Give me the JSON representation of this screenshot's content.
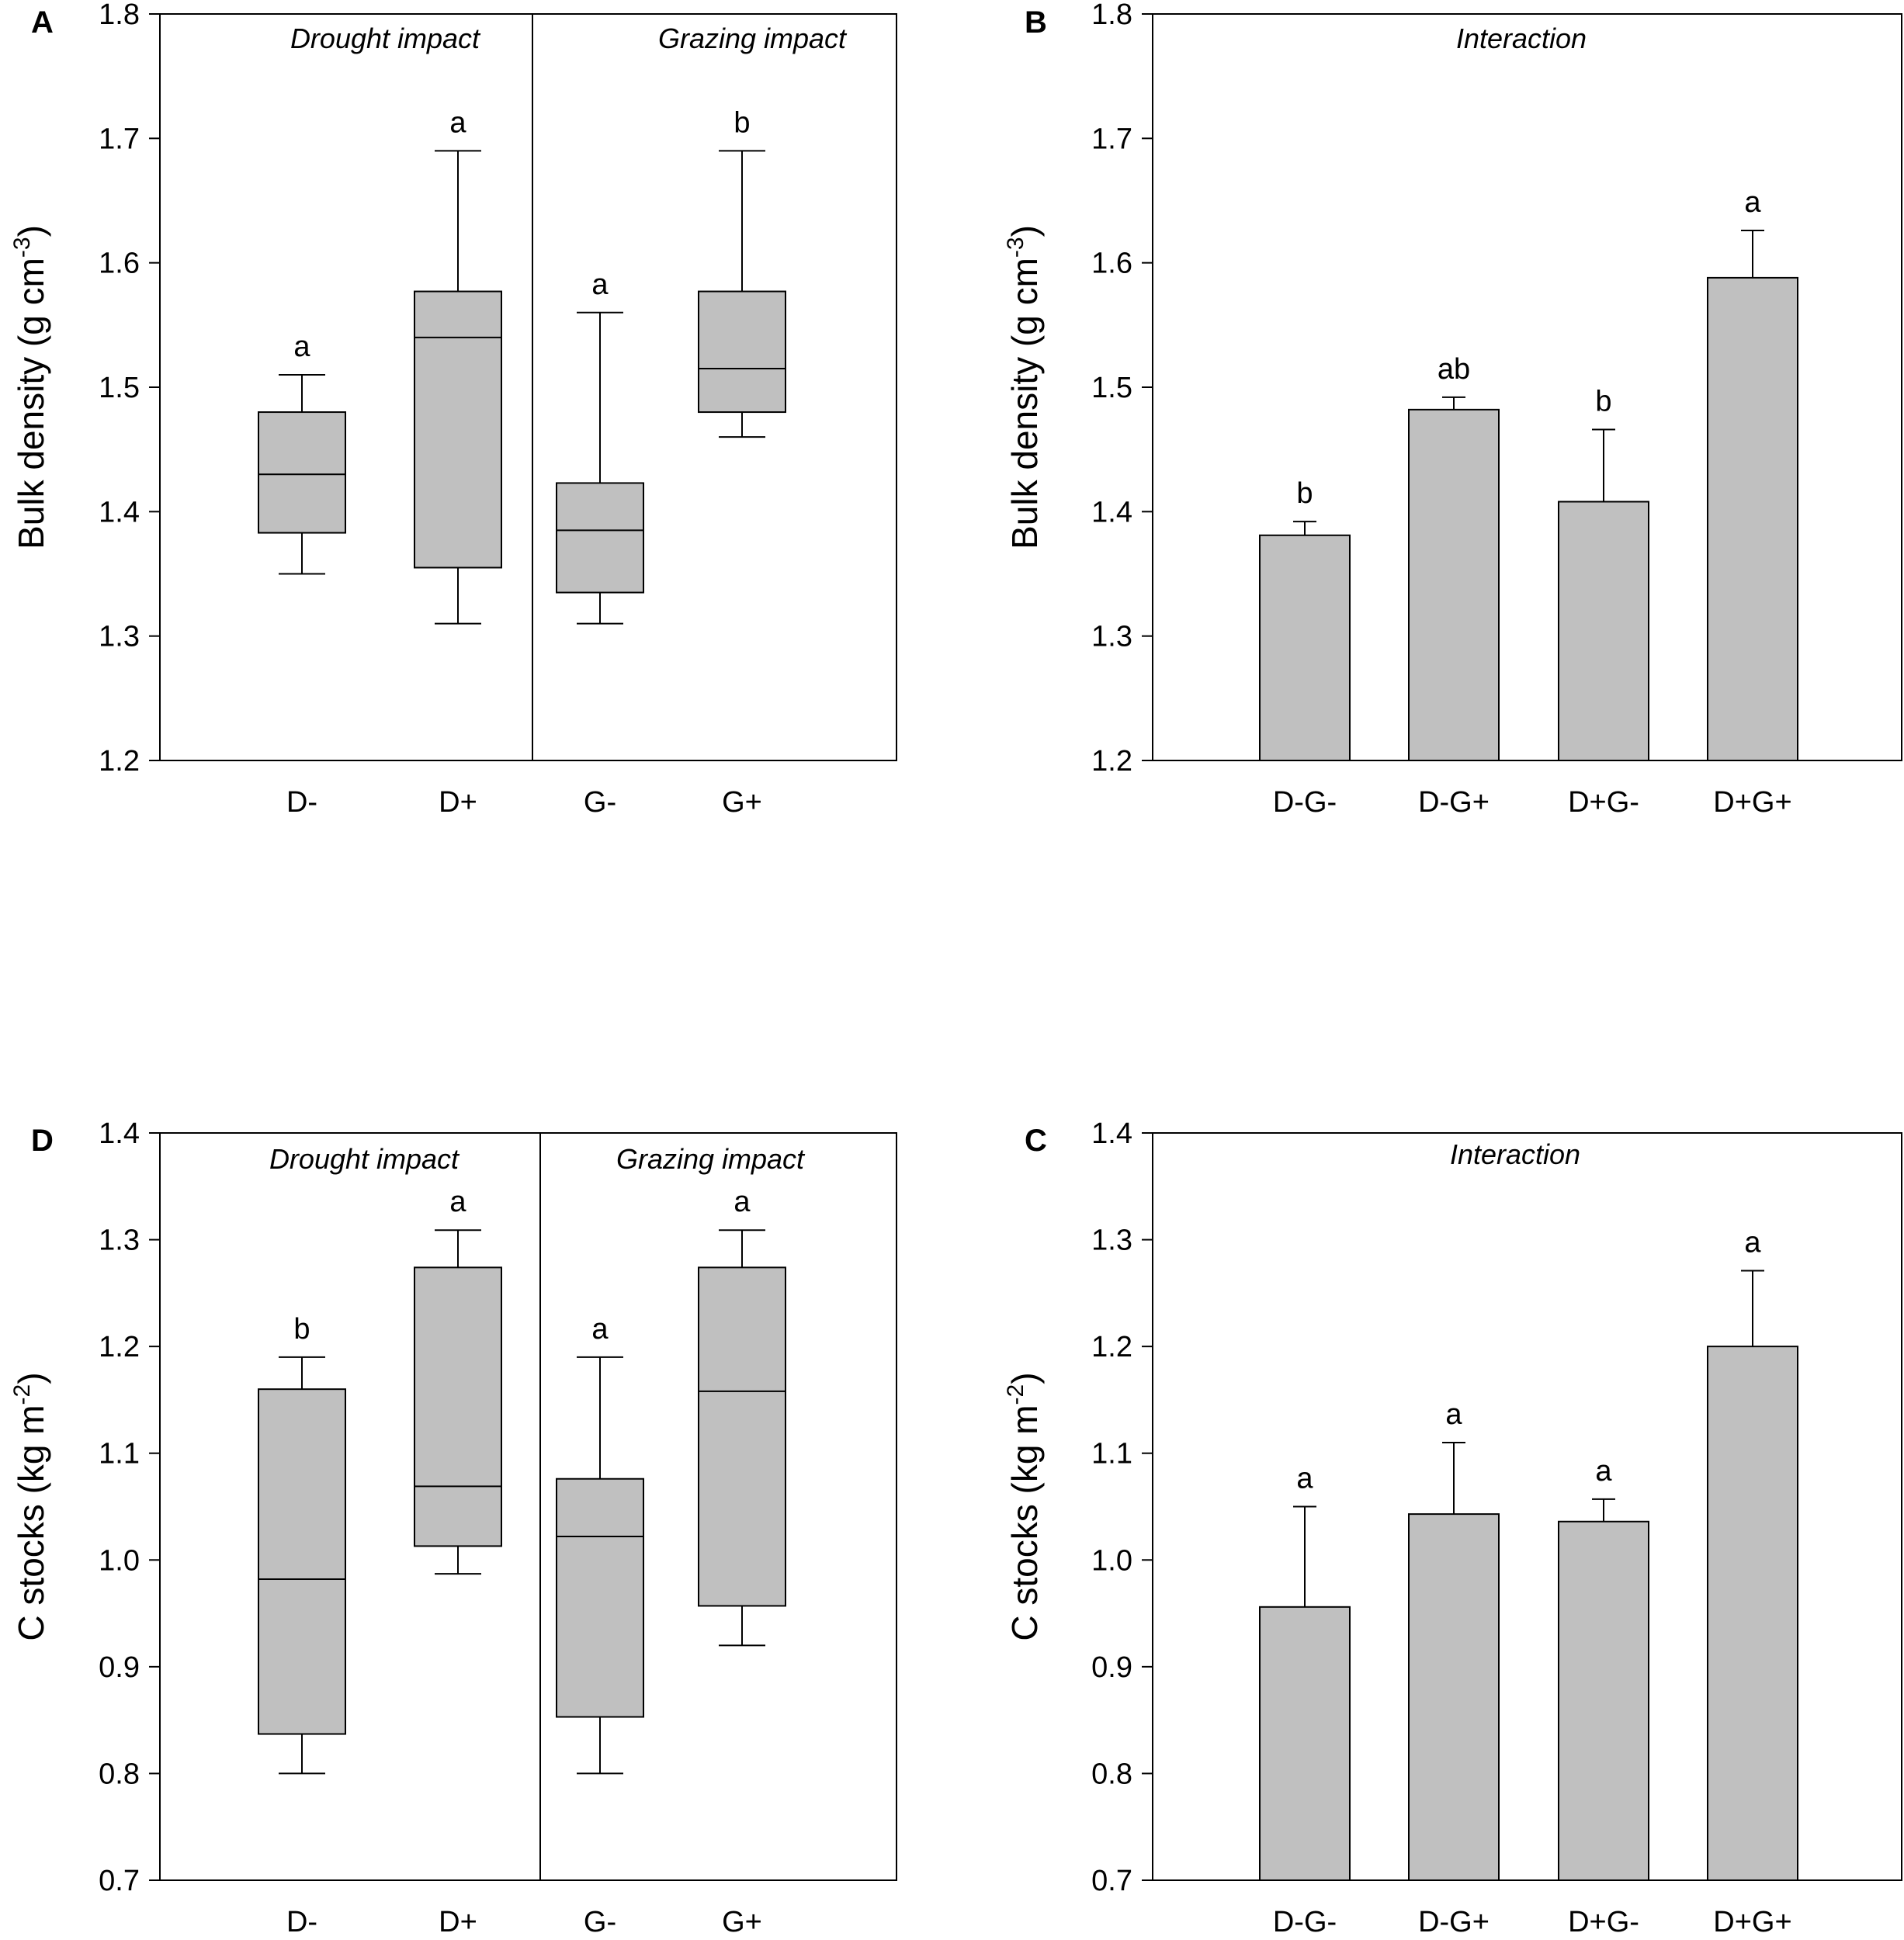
{
  "colors": {
    "box_fill": "#c0c0c0",
    "stroke": "#000000",
    "background": "#ffffff"
  },
  "chart_data": [
    {
      "panel": "A",
      "type": "boxplot",
      "ylabel": "Bulk density (g cm-3)",
      "ylabel_parts": [
        "Bulk density (g cm",
        "-3",
        ")"
      ],
      "ylim": [
        1.2,
        1.8
      ],
      "yticks": [
        1.2,
        1.3,
        1.4,
        1.5,
        1.6,
        1.7,
        1.8
      ],
      "ytick_labels": [
        "1.2",
        "1.3",
        "1.4",
        "1.5",
        "1.6",
        "1.7",
        "1.8"
      ],
      "group_labels": [
        "Drought impact",
        "Grazing impact"
      ],
      "categories": [
        "D-",
        "D+",
        "G-",
        "G+"
      ],
      "boxes": [
        {
          "min": 1.35,
          "q1": 1.383,
          "median": 1.43,
          "q3": 1.48,
          "max": 1.51
        },
        {
          "min": 1.31,
          "q1": 1.355,
          "median": 1.54,
          "q3": 1.577,
          "max": 1.69
        },
        {
          "min": 1.31,
          "q1": 1.335,
          "median": 1.385,
          "q3": 1.423,
          "max": 1.56
        },
        {
          "min": 1.46,
          "q1": 1.48,
          "median": 1.515,
          "q3": 1.577,
          "max": 1.69
        }
      ],
      "letters": [
        "a",
        "a",
        "a",
        "b"
      ]
    },
    {
      "panel": "B",
      "type": "bar",
      "ylabel": "Bulk density (g cm-3)",
      "ylabel_parts": [
        "Bulk density (g cm",
        "-3",
        ")"
      ],
      "ylim": [
        1.2,
        1.8
      ],
      "yticks": [
        1.2,
        1.3,
        1.4,
        1.5,
        1.6,
        1.7,
        1.8
      ],
      "ytick_labels": [
        "1.2",
        "1.3",
        "1.4",
        "1.5",
        "1.6",
        "1.7",
        "1.8"
      ],
      "group_labels": [
        "Interaction"
      ],
      "categories": [
        "D-G-",
        "D-G+",
        "D+G-",
        "D+G+"
      ],
      "values": [
        1.381,
        1.482,
        1.408,
        1.588
      ],
      "errors": [
        0.011,
        0.01,
        0.058,
        0.038
      ],
      "letters": [
        "b",
        "ab",
        "b",
        "a"
      ]
    },
    {
      "panel": "D",
      "type": "boxplot",
      "ylabel": "C stocks (kg m-2)",
      "ylabel_parts": [
        "C stocks (kg m",
        "-2",
        ")"
      ],
      "ylim": [
        0.7,
        1.4
      ],
      "yticks": [
        0.7,
        0.8,
        0.9,
        1.0,
        1.1,
        1.2,
        1.3,
        1.4
      ],
      "ytick_labels": [
        "0.7",
        "0.8",
        "0.9",
        "1.0",
        "1.1",
        "1.2",
        "1.3",
        "1.4"
      ],
      "group_labels": [
        "Drought impact",
        "Grazing impact"
      ],
      "categories": [
        "D-",
        "D+",
        "G-",
        "G+"
      ],
      "boxes": [
        {
          "min": 0.8,
          "q1": 0.837,
          "median": 0.982,
          "q3": 1.16,
          "max": 1.19
        },
        {
          "min": 0.987,
          "q1": 1.013,
          "median": 1.069,
          "q3": 1.274,
          "max": 1.309
        },
        {
          "min": 0.8,
          "q1": 0.853,
          "median": 1.022,
          "q3": 1.076,
          "max": 1.19
        },
        {
          "min": 0.92,
          "q1": 0.957,
          "median": 1.158,
          "q3": 1.274,
          "max": 1.309
        }
      ],
      "letters": [
        "b",
        "a",
        "a",
        "a"
      ]
    },
    {
      "panel": "C",
      "type": "bar",
      "ylabel": "C stocks (kg m-2)",
      "ylabel_parts": [
        "C stocks (kg m",
        "-2",
        ")"
      ],
      "ylim": [
        0.7,
        1.4
      ],
      "yticks": [
        0.7,
        0.8,
        0.9,
        1.0,
        1.1,
        1.2,
        1.3,
        1.4
      ],
      "ytick_labels": [
        "0.7",
        "0.8",
        "0.9",
        "1.0",
        "1.1",
        "1.2",
        "1.3",
        "1.4"
      ],
      "group_labels": [
        "Interaction"
      ],
      "categories": [
        "D-G-",
        "D-G+",
        "D+G-",
        "D+G+"
      ],
      "values": [
        0.956,
        1.043,
        1.036,
        1.2
      ],
      "errors": [
        0.094,
        0.067,
        0.021,
        0.071
      ],
      "letters": [
        "a",
        "a",
        "a",
        "a"
      ]
    }
  ]
}
